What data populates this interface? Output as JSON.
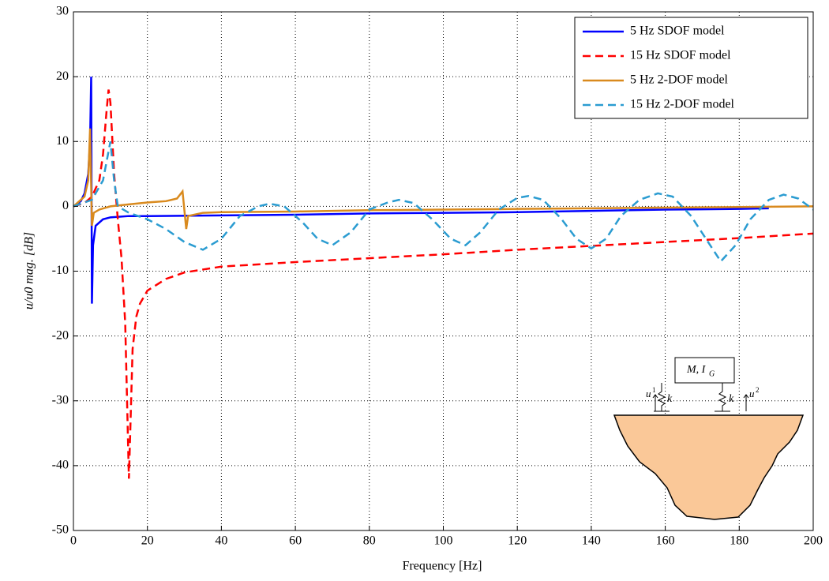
{
  "chart_data": {
    "type": "line",
    "xlabel": "Frequency [Hz]",
    "ylabel": "u/u0 mag. [dB]",
    "xlim": [
      0,
      200
    ],
    "xticks": [
      0,
      20,
      40,
      60,
      80,
      100,
      120,
      140,
      160,
      180,
      200
    ],
    "ylim": [
      -50,
      30
    ],
    "yticks": [
      -50,
      -40,
      -30,
      -20,
      -10,
      0,
      10,
      20,
      30
    ],
    "grid": true,
    "legend": "upper-right",
    "series": [
      {
        "name": "5 Hz SDOF model",
        "color": "#0000ff",
        "dash": "solid",
        "x": [
          0,
          2,
          3,
          4,
          4.5,
          4.8,
          5,
          5.3,
          6,
          8,
          10,
          15,
          20,
          40,
          60,
          80,
          100,
          120,
          140,
          160,
          180,
          188
        ],
        "values": [
          0,
          0.8,
          2,
          5,
          10,
          20,
          -15,
          -6,
          -3,
          -2,
          -1.7,
          -1.5,
          -1.5,
          -1.4,
          -1.3,
          -1.1,
          -1,
          -0.9,
          -0.7,
          -0.5,
          -0.4,
          -0.3
        ]
      },
      {
        "name": "15 Hz SDOF model",
        "color": "#ff0000",
        "dash": "dashed",
        "x": [
          0,
          3,
          5,
          7,
          8,
          9,
          9.5,
          10,
          11,
          12,
          13,
          14,
          15,
          16,
          17,
          18,
          20,
          25,
          30,
          40,
          60,
          80,
          100,
          120,
          140,
          160,
          180,
          200
        ],
        "values": [
          0,
          0.5,
          1.5,
          4,
          8,
          15,
          18,
          16,
          5,
          -2,
          -8,
          -18,
          -42,
          -22,
          -17,
          -15,
          -13,
          -11.2,
          -10.2,
          -9.3,
          -8.6,
          -8,
          -7.4,
          -6.7,
          -6.1,
          -5.5,
          -4.9,
          -4.2
        ]
      },
      {
        "name": "5 Hz 2-DOF model",
        "color": "#d98a1e",
        "dash": "solid",
        "x": [
          0,
          3,
          4,
          4.5,
          5,
          5.5,
          7,
          10,
          15,
          20,
          25,
          28,
          29.5,
          30.5,
          31,
          35,
          40,
          60,
          80,
          100,
          120,
          140,
          160,
          180,
          200
        ],
        "values": [
          0,
          1.5,
          4,
          12,
          -3,
          -1,
          -0.5,
          0,
          0.3,
          0.6,
          0.8,
          1.2,
          2.3,
          -3.5,
          -1.5,
          -1,
          -0.9,
          -0.8,
          -0.6,
          -0.5,
          -0.4,
          -0.3,
          -0.2,
          -0.1,
          0
        ]
      },
      {
        "name": "15 Hz 2-DOF model",
        "color": "#2b9cd1",
        "dash": "dashed",
        "x": [
          0,
          5,
          8,
          10,
          11,
          12,
          15,
          20,
          25,
          30,
          35,
          40,
          45,
          50,
          53,
          57,
          62,
          66,
          70,
          75,
          80,
          85,
          88,
          92,
          97,
          102,
          106,
          110,
          115,
          120,
          123,
          127,
          132,
          136,
          140,
          144,
          148,
          153,
          158,
          162,
          167,
          171,
          175,
          179,
          183,
          188,
          192,
          196,
          200
        ],
        "values": [
          0,
          1,
          4,
          10,
          4,
          0,
          -1,
          -2,
          -3.5,
          -5.5,
          -6.7,
          -5,
          -1.5,
          0,
          0.4,
          0,
          -2.5,
          -5,
          -6,
          -4,
          -0.5,
          0.6,
          1,
          0.5,
          -2,
          -5,
          -6,
          -4,
          -0.5,
          1.3,
          1.6,
          1,
          -2,
          -5,
          -6.5,
          -5,
          -1.5,
          1,
          2,
          1.5,
          -1.5,
          -5,
          -8.5,
          -6,
          -2,
          1,
          1.8,
          1.2,
          -0.5
        ]
      }
    ],
    "inset_labels": {
      "mass": "M, I",
      "mass_sub": "G",
      "u1": "u",
      "u1_sup": "1",
      "k1": "k",
      "k2": "k",
      "u2": "u",
      "u2_sup": "2"
    }
  }
}
